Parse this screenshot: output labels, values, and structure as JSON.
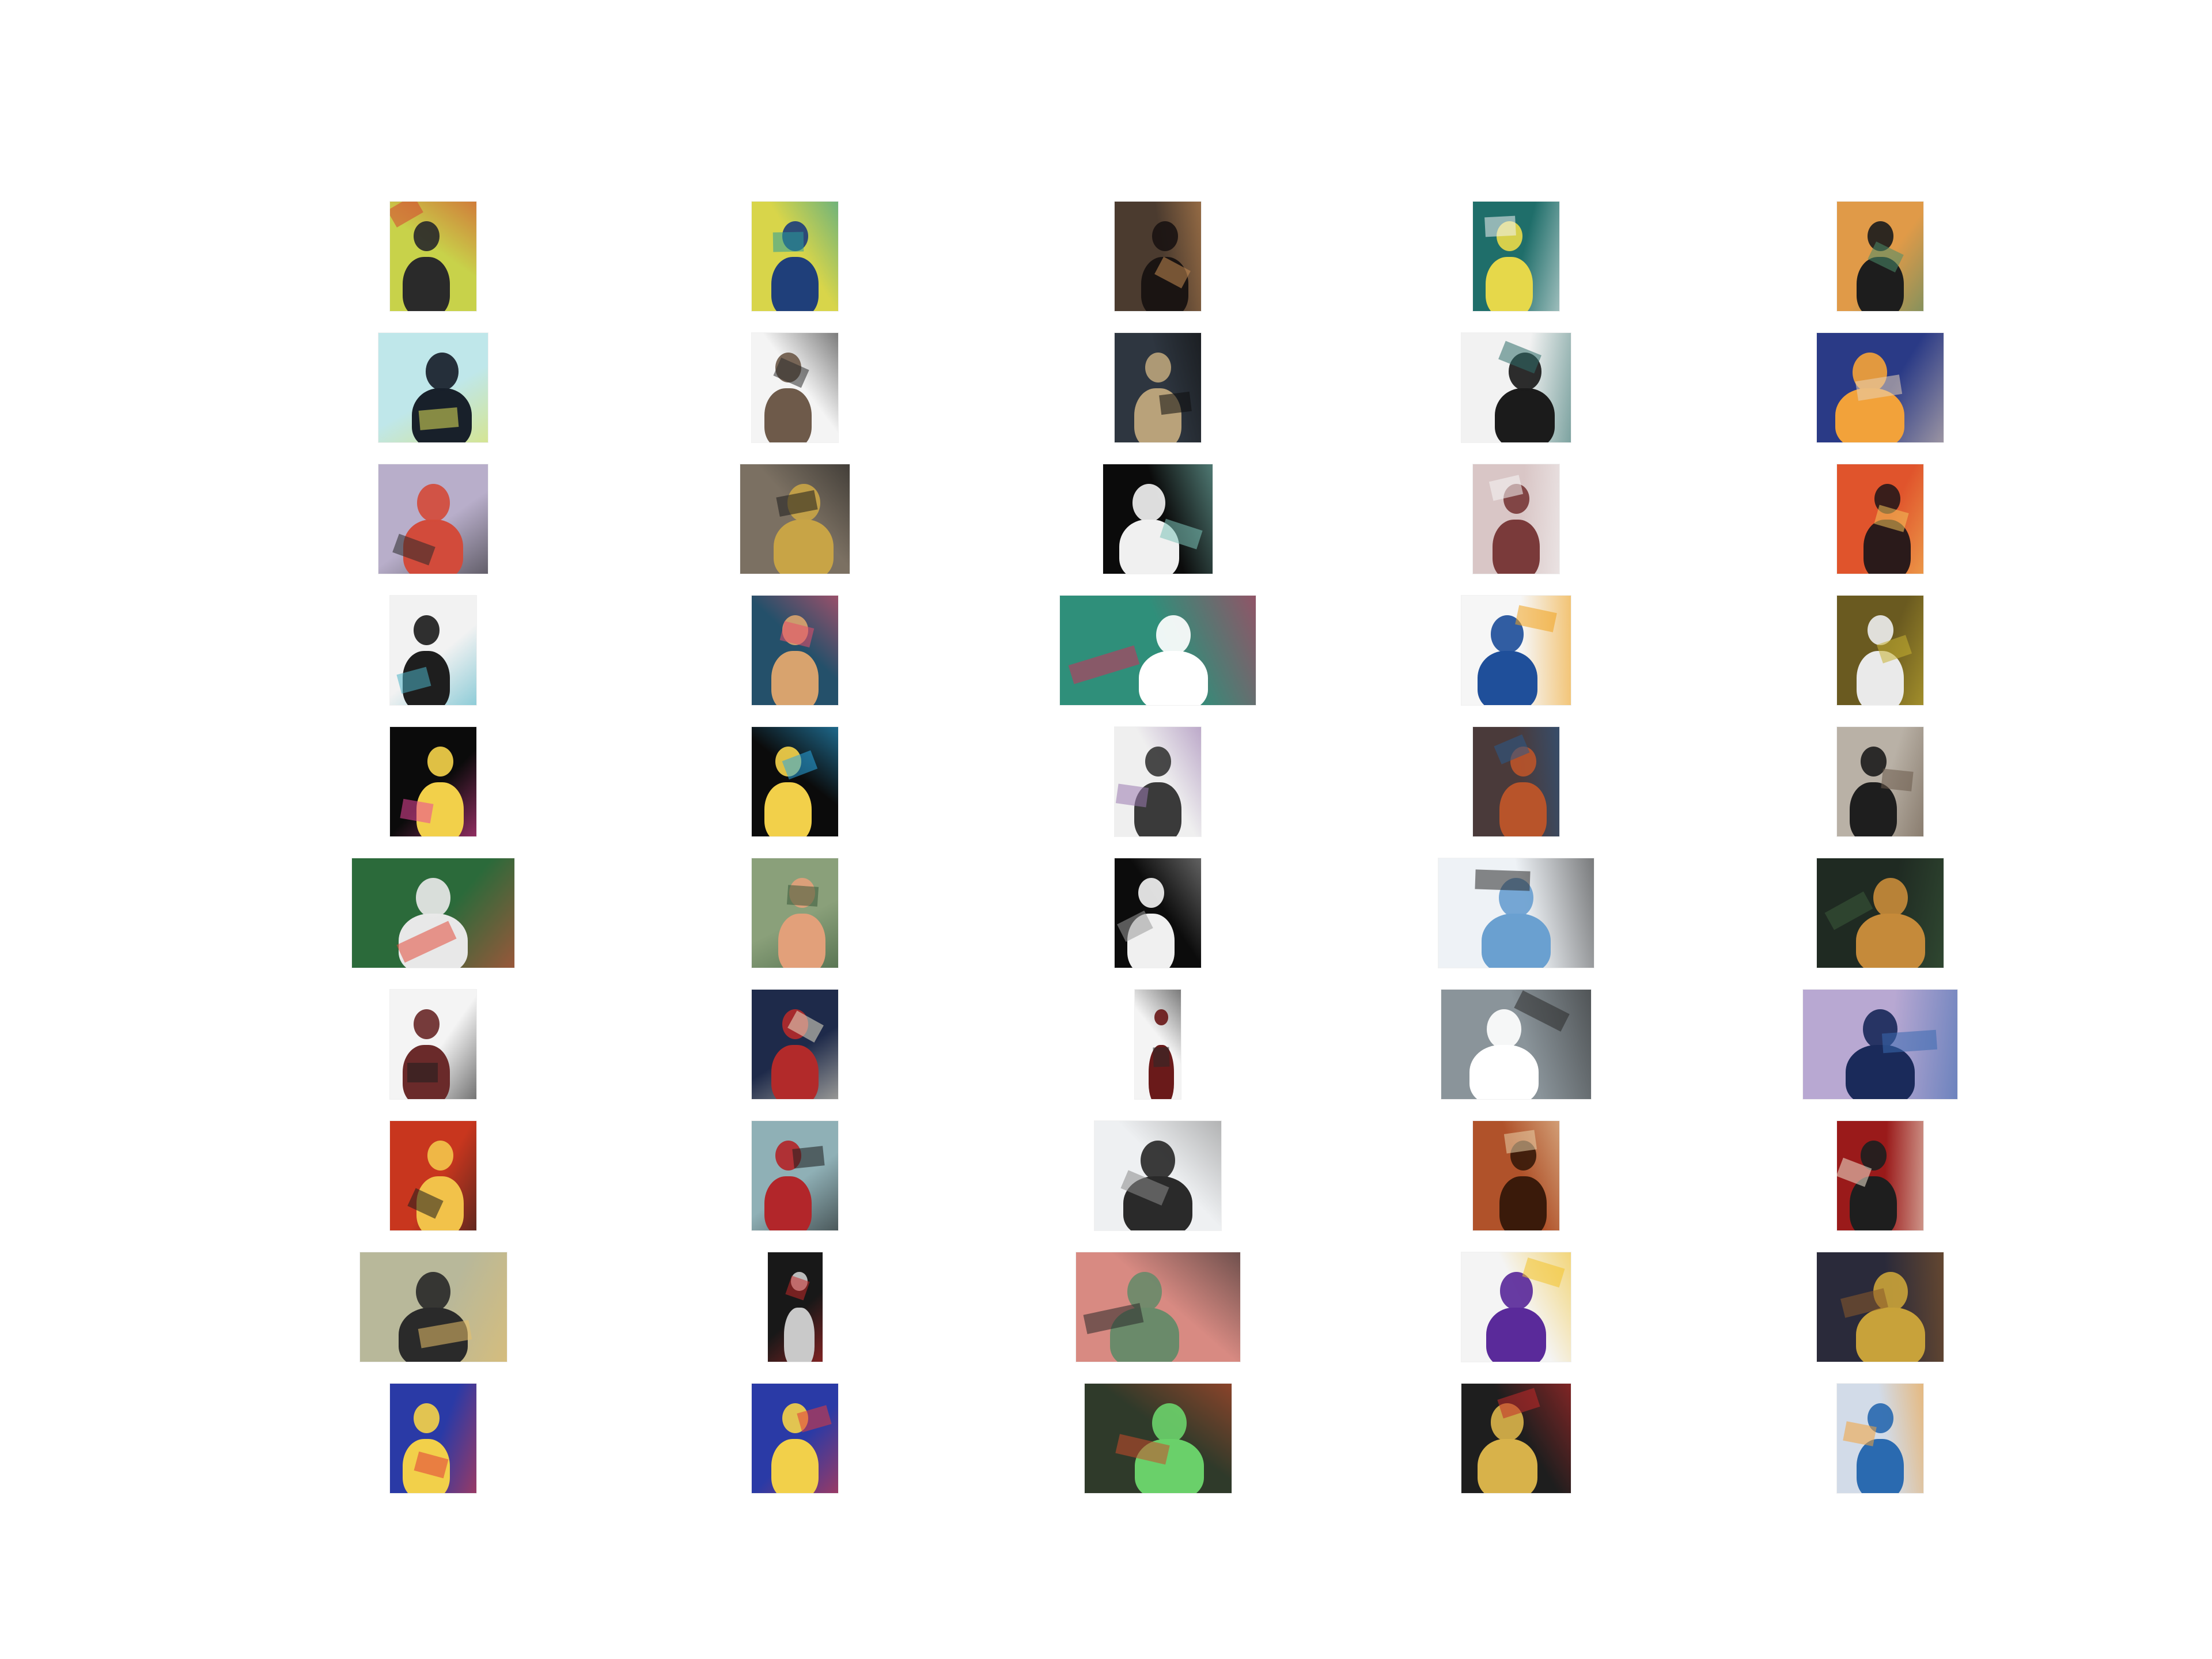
{
  "gallery": {
    "rows": 10,
    "columns": 5,
    "thumbnails": [
      {
        "id": "r1c1",
        "shape": "portrait",
        "bg": "#c8d24a",
        "fg": "#2a2a2a",
        "accent": "#d6432f"
      },
      {
        "id": "r1c2",
        "shape": "portrait",
        "bg": "#d8d54a",
        "fg": "#1f3f7a",
        "accent": "#2a9c9a"
      },
      {
        "id": "r1c3",
        "shape": "portrait",
        "bg": "#4b3b2f",
        "fg": "#1a1412",
        "accent": "#c58a52"
      },
      {
        "id": "r1c4",
        "shape": "portrait",
        "bg": "#1f6e6a",
        "fg": "#e6d84a",
        "accent": "#f2f2f2"
      },
      {
        "id": "r1c5",
        "shape": "portrait",
        "bg": "#e09a48",
        "fg": "#1d1d1d",
        "accent": "#4a8c6a"
      },
      {
        "id": "r2c1",
        "shape": "square",
        "bg": "#bfe7ea",
        "fg": "#18202a",
        "accent": "#e3e35a"
      },
      {
        "id": "r2c2",
        "shape": "portrait",
        "bg": "#f4f4f4",
        "fg": "#6e5a4a",
        "accent": "#2c2c2c"
      },
      {
        "id": "r2c3",
        "shape": "portrait",
        "bg": "#2e3640",
        "fg": "#b9a27a",
        "accent": "#0f0f0f"
      },
      {
        "id": "r2c4",
        "shape": "square",
        "bg": "#f2f2f2",
        "fg": "#1b1b1b",
        "accent": "#2f6e6a"
      },
      {
        "id": "r2c5",
        "shape": "landscape",
        "bg": "#2a3a86",
        "fg": "#f2a23a",
        "accent": "#e7d1b6"
      },
      {
        "id": "r3c1",
        "shape": "square",
        "bg": "#b8aeca",
        "fg": "#d24b3b",
        "accent": "#2a2a2a"
      },
      {
        "id": "r3c2",
        "shape": "square",
        "bg": "#7b7062",
        "fg": "#c8a446",
        "accent": "#1e1e1e"
      },
      {
        "id": "r3c3",
        "shape": "square",
        "bg": "#0b0b0b",
        "fg": "#f0f0f0",
        "accent": "#7cc2b8"
      },
      {
        "id": "r3c4",
        "shape": "portrait",
        "bg": "#d9c6c6",
        "fg": "#7a3a3a",
        "accent": "#f5f5f5"
      },
      {
        "id": "r3c5",
        "shape": "portrait",
        "bg": "#e0542c",
        "fg": "#2a1a1a",
        "accent": "#f3c35a"
      },
      {
        "id": "r4c1",
        "shape": "portrait",
        "bg": "#f2f2f2",
        "fg": "#1e1e1e",
        "accent": "#4cb3c6"
      },
      {
        "id": "r4c2",
        "shape": "portrait",
        "bg": "#24506a",
        "fg": "#d8a36e",
        "accent": "#e84f6a"
      },
      {
        "id": "r4c3",
        "shape": "wide",
        "bg": "#2f8f7a",
        "fg": "#ffffff",
        "accent": "#d22d5a"
      },
      {
        "id": "r4c4",
        "shape": "square",
        "bg": "#f6f6f6",
        "fg": "#1f4f9a",
        "accent": "#f0a21e"
      },
      {
        "id": "r4c5",
        "shape": "portrait",
        "bg": "#6a5a20",
        "fg": "#eaeaea",
        "accent": "#c6b032"
      },
      {
        "id": "r5c1",
        "shape": "portrait",
        "bg": "#0b0b0b",
        "fg": "#f2d04a",
        "accent": "#e9459a"
      },
      {
        "id": "r5c2",
        "shape": "portrait",
        "bg": "#0b0b0b",
        "fg": "#f2d04a",
        "accent": "#2aa6e0"
      },
      {
        "id": "r5c3",
        "shape": "portrait",
        "bg": "#efefef",
        "fg": "#3a3a3a",
        "accent": "#9a7ab0"
      },
      {
        "id": "r5c4",
        "shape": "portrait",
        "bg": "#4a3a3a",
        "fg": "#b8542a",
        "accent": "#2a5a8a"
      },
      {
        "id": "r5c5",
        "shape": "portrait",
        "bg": "#b9b1a6",
        "fg": "#1e1e1e",
        "accent": "#6a5a4a"
      },
      {
        "id": "r6c1",
        "shape": "wide",
        "bg": "#2b6a3a",
        "fg": "#e8e8e8",
        "accent": "#e24b3a"
      },
      {
        "id": "r6c2",
        "shape": "portrait",
        "bg": "#8aa07a",
        "fg": "#e2a07a",
        "accent": "#3a5a3a"
      },
      {
        "id": "r6c3",
        "shape": "portrait",
        "bg": "#0c0c0c",
        "fg": "#f0f0f0",
        "accent": "#9a9a9a"
      },
      {
        "id": "r6c4",
        "shape": "wide",
        "bg": "#eef2f6",
        "fg": "#6aa0d0",
        "accent": "#2a2a2a"
      },
      {
        "id": "r6c5",
        "shape": "landscape",
        "bg": "#1f2a22",
        "fg": "#c58a3a",
        "accent": "#3a5a3a"
      },
      {
        "id": "r7c1",
        "shape": "portrait",
        "bg": "#f4f4f4",
        "fg": "#6a2a2a",
        "accent": "#1e1e1e"
      },
      {
        "id": "r7c2",
        "shape": "portrait",
        "bg": "#1e2a4a",
        "fg": "#b22a2a",
        "accent": "#e8e0c8"
      },
      {
        "id": "r7c3",
        "shape": "tall",
        "bg": "#f4f4f4",
        "fg": "#6a1a1a",
        "accent": "#2a2a2a"
      },
      {
        "id": "r7c4",
        "shape": "wide",
        "bg": "#8a949a",
        "fg": "#ffffff",
        "accent": "#2a2a2a"
      },
      {
        "id": "r7c5",
        "shape": "wide",
        "bg": "#b8a8d2",
        "fg": "#1a2a5a",
        "accent": "#3a6ab0"
      },
      {
        "id": "r8c1",
        "shape": "portrait",
        "bg": "#c8361e",
        "fg": "#f2c24a",
        "accent": "#1e1e1e"
      },
      {
        "id": "r8c2",
        "shape": "portrait",
        "bg": "#8fb0b6",
        "fg": "#b2262a",
        "accent": "#1e1e1e"
      },
      {
        "id": "r8c3",
        "shape": "landscape",
        "bg": "#eef0f2",
        "fg": "#2a2a2a",
        "accent": "#8a8a8a"
      },
      {
        "id": "r8c4",
        "shape": "portrait",
        "bg": "#b0522a",
        "fg": "#3a1a0a",
        "accent": "#e8d0a8"
      },
      {
        "id": "r8c5",
        "shape": "portrait",
        "bg": "#9a1a1a",
        "fg": "#1e1e1e",
        "accent": "#f0e6d2"
      },
      {
        "id": "r9c1",
        "shape": "wide",
        "bg": "#b8b89a",
        "fg": "#2a2a2a",
        "accent": "#e8c06a"
      },
      {
        "id": "r9c2",
        "shape": "tall",
        "bg": "#181818",
        "fg": "#c9c9c9",
        "accent": "#c42a2a"
      },
      {
        "id": "r9c3",
        "shape": "wide",
        "bg": "#d88a82",
        "fg": "#6a8a6a",
        "accent": "#2a2a2a"
      },
      {
        "id": "r9c4",
        "shape": "square",
        "bg": "#f4f4f4",
        "fg": "#5a2a9a",
        "accent": "#f2c22a"
      },
      {
        "id": "r9c5",
        "shape": "landscape",
        "bg": "#2a2a3a",
        "fg": "#c8a23a",
        "accent": "#8a5a2a"
      },
      {
        "id": "r10c1",
        "shape": "portrait",
        "bg": "#2a3aa6",
        "fg": "#f2d04a",
        "accent": "#e23a3a"
      },
      {
        "id": "r10c2",
        "shape": "portrait",
        "bg": "#2a3aa6",
        "fg": "#f2d04a",
        "accent": "#e23a3a"
      },
      {
        "id": "r10c3",
        "shape": "wide",
        "bg": "#2f3a2a",
        "fg": "#6ad06a",
        "accent": "#c84a2a"
      },
      {
        "id": "r10c4",
        "shape": "square",
        "bg": "#1e1e1e",
        "fg": "#d8b24a",
        "accent": "#c22a2a"
      },
      {
        "id": "r10c5",
        "shape": "portrait",
        "bg": "#d2dbe8",
        "fg": "#2a6ab0",
        "accent": "#f2a23a"
      }
    ]
  }
}
